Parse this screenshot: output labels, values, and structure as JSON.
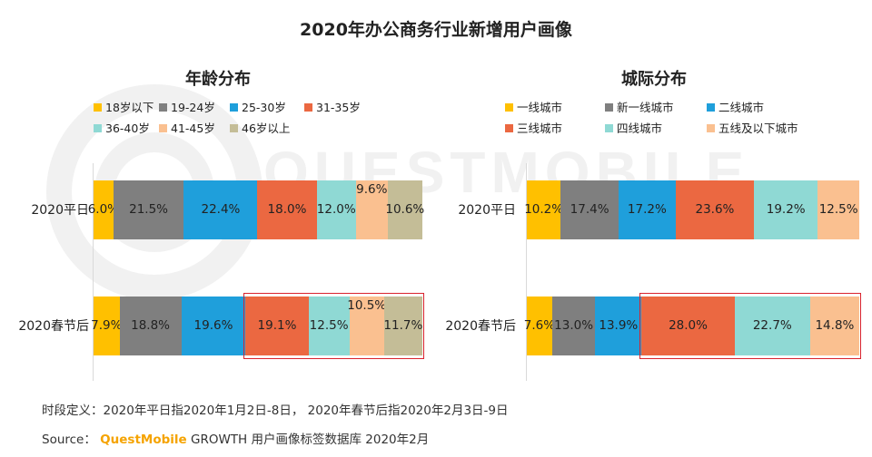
{
  "title": "2020年办公商务行业新增用户画像",
  "colors": {
    "yellow": "#FFC000",
    "gray": "#7F7F7F",
    "blue": "#1F9FDB",
    "red": "#EB6841",
    "teal": "#8FD9D4",
    "peach": "#FAC090",
    "khaki": "#C4BD97",
    "highlight": "#D9232D"
  },
  "chart_data": [
    {
      "type": "bar",
      "orientation": "horizontal-stacked-100",
      "title": "年龄分布",
      "categories": [
        "2020平日",
        "2020春节后"
      ],
      "series": [
        {
          "name": "18岁以下",
          "color": "#FFC000",
          "values": [
            6.0,
            7.9
          ],
          "labels": [
            "6.0%",
            "7.9%"
          ]
        },
        {
          "name": "19-24岁",
          "color": "#7F7F7F",
          "values": [
            21.5,
            18.8
          ],
          "labels": [
            "21.5%",
            "18.8%"
          ]
        },
        {
          "name": "25-30岁",
          "color": "#1F9FDB",
          "values": [
            22.4,
            19.6
          ],
          "labels": [
            "22.4%",
            "19.6%"
          ]
        },
        {
          "name": "31-35岁",
          "color": "#EB6841",
          "values": [
            18.0,
            19.1
          ],
          "labels": [
            "18.0%",
            "19.1%"
          ]
        },
        {
          "name": "36-40岁",
          "color": "#8FD9D4",
          "values": [
            12.0,
            12.5
          ],
          "labels": [
            "12.0%",
            "12.5%"
          ]
        },
        {
          "name": "41-45岁",
          "color": "#FAC090",
          "values": [
            9.6,
            10.5
          ],
          "labels": [
            "9.6%",
            "10.5%"
          ]
        },
        {
          "name": "46岁以上",
          "color": "#C4BD97",
          "values": [
            10.6,
            11.7
          ],
          "labels": [
            "10.6%",
            "11.7%"
          ]
        }
      ],
      "highlight": {
        "category_index": 1,
        "from_series": 3,
        "to_series": 6
      }
    },
    {
      "type": "bar",
      "orientation": "horizontal-stacked-100",
      "title": "城际分布",
      "categories": [
        "2020平日",
        "2020春节后"
      ],
      "series": [
        {
          "name": "一线城市",
          "color": "#FFC000",
          "values": [
            10.2,
            7.6
          ],
          "labels": [
            "10.2%",
            "7.6%"
          ]
        },
        {
          "name": "新一线城市",
          "color": "#7F7F7F",
          "values": [
            17.4,
            13.0
          ],
          "labels": [
            "17.4%",
            "13.0%"
          ]
        },
        {
          "name": "二线城市",
          "color": "#1F9FDB",
          "values": [
            17.2,
            13.9
          ],
          "labels": [
            "17.2%",
            "13.9%"
          ]
        },
        {
          "name": "三线城市",
          "color": "#EB6841",
          "values": [
            23.6,
            28.0
          ],
          "labels": [
            "23.6%",
            "28.0%"
          ]
        },
        {
          "name": "四线城市",
          "color": "#8FD9D4",
          "values": [
            19.2,
            22.7
          ],
          "labels": [
            "19.2%",
            "22.7%"
          ]
        },
        {
          "name": "五线及以下城市",
          "color": "#FAC090",
          "values": [
            12.5,
            14.8
          ],
          "labels": [
            "12.5%",
            "14.8%"
          ]
        }
      ],
      "highlight": {
        "category_index": 1,
        "from_series": 3,
        "to_series": 5
      }
    }
  ],
  "footnote": "时段定义：2020年平日指2020年1月2日-8日， 2020年春节后指2020年2月3日-9日",
  "source": {
    "prefix": "Source：",
    "brand": "QuestMobile",
    "suffix": "GROWTH 用户画像标签数据库 2020年2月"
  },
  "watermark": "QUESTMOBILE"
}
